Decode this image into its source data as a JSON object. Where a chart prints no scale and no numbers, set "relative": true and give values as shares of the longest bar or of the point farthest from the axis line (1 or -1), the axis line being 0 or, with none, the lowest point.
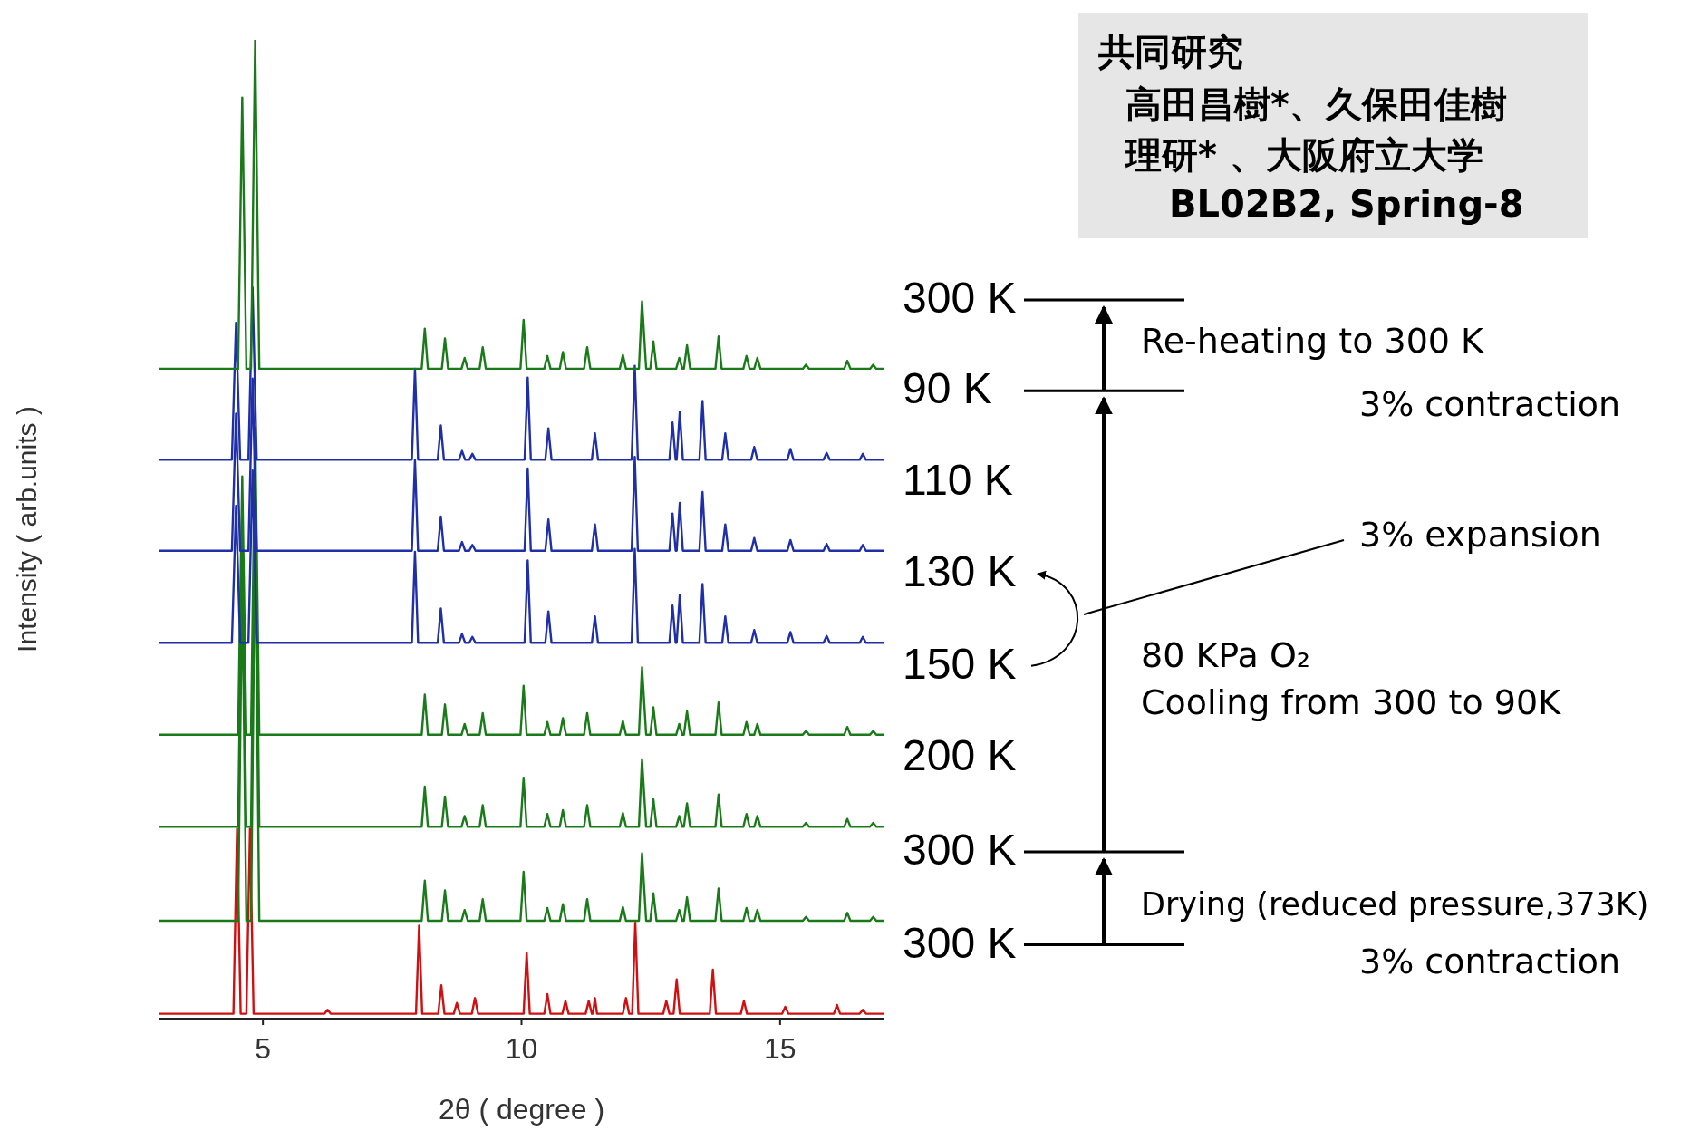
{
  "chart_data": {
    "type": "line",
    "relative": true,
    "xlabel": "2θ ( degree )",
    "ylabel": "Intensity ( arb.units )",
    "xlim": [
      3,
      17
    ],
    "xticks": [
      5,
      10,
      15
    ],
    "marker": "none",
    "line_style": "solid",
    "tick_labels": "x",
    "series": [
      {
        "name": "300 K",
        "color": "#d01010",
        "x": [
          3,
          4.43,
          4.5,
          4.57,
          4.68,
          4.75,
          4.82,
          6.19,
          6.25,
          6.31,
          7.96,
          8.02,
          8.08,
          8.39,
          8.45,
          8.51,
          8.69,
          8.75,
          8.81,
          9.04,
          9.1,
          9.16,
          10.04,
          10.1,
          10.16,
          10.44,
          10.5,
          10.56,
          10.79,
          10.85,
          10.91,
          11.24,
          11.3,
          11.36,
          11.38,
          11.42,
          11.46,
          11.96,
          12.02,
          12.08,
          12.14,
          12.2,
          12.26,
          12.74,
          12.8,
          12.86,
          12.94,
          13.0,
          13.06,
          13.64,
          13.7,
          13.76,
          14.24,
          14.3,
          14.36,
          15.04,
          15.1,
          15.16,
          16.04,
          16.1,
          16.16,
          16.54,
          16.6,
          16.66,
          17
        ],
        "values": [
          0.005,
          0.005,
          0.194,
          0.005,
          0.005,
          0.194,
          0.005,
          0.005,
          0.009,
          0.005,
          0.005,
          0.095,
          0.005,
          0.005,
          0.034,
          0.005,
          0.005,
          0.016,
          0.005,
          0.005,
          0.021,
          0.005,
          0.005,
          0.067,
          0.005,
          0.005,
          0.025,
          0.005,
          0.005,
          0.018,
          0.005,
          0.005,
          0.018,
          0.005,
          0.005,
          0.021,
          0.005,
          0.005,
          0.021,
          0.005,
          0.005,
          0.098,
          0.005,
          0.005,
          0.018,
          0.005,
          0.005,
          0.04,
          0.005,
          0.005,
          0.05,
          0.005,
          0.005,
          0.018,
          0.005,
          0.005,
          0.012,
          0.005,
          0.005,
          0.014,
          0.005,
          0.005,
          0.009,
          0.005,
          0.005
        ]
      },
      {
        "name": "300 K",
        "color": "#1a7a1a",
        "x": [
          3,
          4.52,
          4.6,
          4.68,
          4.77,
          4.85,
          4.93,
          8.07,
          8.13,
          8.19,
          8.46,
          8.52,
          8.58,
          8.84,
          8.9,
          8.96,
          9.19,
          9.25,
          9.31,
          9.98,
          10.04,
          10.1,
          10.44,
          10.5,
          10.56,
          10.74,
          10.8,
          10.86,
          11.21,
          11.27,
          11.33,
          11.9,
          11.96,
          12.02,
          12.27,
          12.33,
          12.41,
          12.49,
          12.55,
          12.61,
          12.99,
          13.05,
          13.11,
          13.14,
          13.2,
          13.26,
          13.75,
          13.81,
          13.87,
          14.29,
          14.35,
          14.41,
          14.5,
          14.56,
          14.62,
          15.44,
          15.5,
          15.56,
          16.24,
          16.3,
          16.36,
          16.74,
          16.8,
          16.86,
          17
        ],
        "values": [
          0.1,
          0.1,
          0.45,
          0.1,
          0.1,
          0.5,
          0.1,
          0.1,
          0.141,
          0.1,
          0.1,
          0.131,
          0.1,
          0.1,
          0.111,
          0.1,
          0.1,
          0.122,
          0.1,
          0.1,
          0.15,
          0.1,
          0.1,
          0.113,
          0.1,
          0.1,
          0.117,
          0.1,
          0.1,
          0.122,
          0.1,
          0.1,
          0.114,
          0.1,
          0.1,
          0.169,
          0.1,
          0.1,
          0.128,
          0.1,
          0.1,
          0.111,
          0.1,
          0.1,
          0.124,
          0.1,
          0.1,
          0.133,
          0.1,
          0.1,
          0.113,
          0.1,
          0.1,
          0.111,
          0.1,
          0.1,
          0.104,
          0.1,
          0.1,
          0.108,
          0.1,
          0.1,
          0.104,
          0.1,
          0.1
        ]
      },
      {
        "name": "200 K",
        "color": "#1a7a1a",
        "x": [
          3,
          4.52,
          4.6,
          4.68,
          4.77,
          4.85,
          4.93,
          8.07,
          8.13,
          8.19,
          8.46,
          8.52,
          8.58,
          8.84,
          8.9,
          8.96,
          9.19,
          9.25,
          9.31,
          9.98,
          10.04,
          10.1,
          10.44,
          10.5,
          10.56,
          10.74,
          10.8,
          10.86,
          11.21,
          11.27,
          11.33,
          11.9,
          11.96,
          12.02,
          12.27,
          12.33,
          12.41,
          12.49,
          12.55,
          12.61,
          12.99,
          13.05,
          13.11,
          13.14,
          13.2,
          13.26,
          13.75,
          13.81,
          13.87,
          14.29,
          14.35,
          14.41,
          14.5,
          14.56,
          14.62,
          15.44,
          15.5,
          15.56,
          16.24,
          16.3,
          16.36,
          16.74,
          16.8,
          16.86,
          17
        ],
        "values": [
          0.196,
          0.196,
          0.5,
          0.196,
          0.196,
          0.56,
          0.196,
          0.196,
          0.237,
          0.196,
          0.196,
          0.227,
          0.196,
          0.196,
          0.207,
          0.196,
          0.196,
          0.218,
          0.196,
          0.196,
          0.246,
          0.196,
          0.196,
          0.209,
          0.196,
          0.196,
          0.213,
          0.196,
          0.196,
          0.218,
          0.196,
          0.196,
          0.21,
          0.196,
          0.196,
          0.265,
          0.196,
          0.196,
          0.224,
          0.196,
          0.196,
          0.207,
          0.196,
          0.196,
          0.22,
          0.196,
          0.196,
          0.229,
          0.196,
          0.196,
          0.209,
          0.196,
          0.196,
          0.207,
          0.196,
          0.196,
          0.2,
          0.196,
          0.196,
          0.204,
          0.196,
          0.196,
          0.2,
          0.196,
          0.196
        ]
      },
      {
        "name": "150 K",
        "color": "#1a7a1a",
        "x": [
          3,
          4.52,
          4.6,
          4.68,
          4.77,
          4.85,
          4.93,
          8.07,
          8.13,
          8.19,
          8.46,
          8.52,
          8.58,
          8.84,
          8.9,
          8.96,
          9.19,
          9.25,
          9.31,
          9.98,
          10.04,
          10.1,
          10.44,
          10.5,
          10.56,
          10.74,
          10.8,
          10.86,
          11.21,
          11.27,
          11.33,
          11.9,
          11.96,
          12.02,
          12.27,
          12.33,
          12.41,
          12.49,
          12.55,
          12.61,
          12.99,
          13.05,
          13.11,
          13.14,
          13.2,
          13.26,
          13.75,
          13.81,
          13.87,
          14.29,
          14.35,
          14.41,
          14.5,
          14.56,
          14.62,
          15.44,
          15.5,
          15.56,
          16.24,
          16.3,
          16.36,
          16.74,
          16.8,
          16.86,
          17
        ],
        "values": [
          0.29,
          0.29,
          0.554,
          0.29,
          0.29,
          0.604,
          0.29,
          0.29,
          0.331,
          0.29,
          0.29,
          0.321,
          0.29,
          0.29,
          0.301,
          0.29,
          0.29,
          0.312,
          0.29,
          0.29,
          0.34,
          0.29,
          0.29,
          0.303,
          0.29,
          0.29,
          0.307,
          0.29,
          0.29,
          0.312,
          0.29,
          0.29,
          0.304,
          0.29,
          0.29,
          0.359,
          0.29,
          0.29,
          0.318,
          0.29,
          0.29,
          0.301,
          0.29,
          0.29,
          0.314,
          0.29,
          0.29,
          0.323,
          0.29,
          0.29,
          0.303,
          0.29,
          0.29,
          0.301,
          0.29,
          0.29,
          0.294,
          0.29,
          0.29,
          0.298,
          0.29,
          0.29,
          0.294,
          0.29,
          0.29
        ]
      },
      {
        "name": "130 K",
        "color": "#1f2fa8",
        "x": [
          3,
          4.4,
          4.48,
          4.56,
          4.72,
          4.8,
          4.88,
          7.88,
          7.94,
          8.0,
          8.38,
          8.44,
          8.5,
          8.79,
          8.85,
          8.91,
          8.99,
          9.05,
          9.11,
          10.06,
          10.12,
          10.18,
          10.46,
          10.52,
          10.58,
          11.36,
          11.42,
          11.48,
          12.13,
          12.19,
          12.25,
          12.86,
          12.92,
          12.98,
          13.0,
          13.06,
          13.12,
          13.44,
          13.5,
          13.56,
          13.88,
          13.94,
          14.0,
          14.44,
          14.5,
          14.56,
          15.14,
          15.2,
          15.26,
          15.84,
          15.9,
          15.96,
          16.54,
          16.6,
          16.66,
          17
        ],
        "values": [
          0.384,
          0.384,
          0.524,
          0.384,
          0.384,
          0.56,
          0.384,
          0.384,
          0.477,
          0.384,
          0.384,
          0.419,
          0.384,
          0.384,
          0.393,
          0.384,
          0.384,
          0.39,
          0.384,
          0.384,
          0.468,
          0.384,
          0.384,
          0.416,
          0.384,
          0.384,
          0.411,
          0.384,
          0.384,
          0.48,
          0.384,
          0.384,
          0.422,
          0.384,
          0.384,
          0.433,
          0.384,
          0.384,
          0.444,
          0.384,
          0.384,
          0.411,
          0.384,
          0.384,
          0.397,
          0.384,
          0.384,
          0.395,
          0.384,
          0.384,
          0.391,
          0.384,
          0.384,
          0.39,
          0.384,
          0.384
        ]
      },
      {
        "name": "110 K",
        "color": "#1f2fa8",
        "x": [
          3,
          4.4,
          4.48,
          4.56,
          4.72,
          4.8,
          4.88,
          7.88,
          7.94,
          8.0,
          8.38,
          8.44,
          8.5,
          8.79,
          8.85,
          8.91,
          8.99,
          9.05,
          9.11,
          10.06,
          10.12,
          10.18,
          10.46,
          10.52,
          10.58,
          11.36,
          11.42,
          11.48,
          12.13,
          12.19,
          12.25,
          12.86,
          12.92,
          12.98,
          13.0,
          13.06,
          13.12,
          13.44,
          13.5,
          13.56,
          13.88,
          13.94,
          14.0,
          14.44,
          14.5,
          14.56,
          15.14,
          15.2,
          15.26,
          15.84,
          15.9,
          15.96,
          16.54,
          16.6,
          16.66,
          17
        ],
        "values": [
          0.478,
          0.478,
          0.618,
          0.478,
          0.478,
          0.654,
          0.478,
          0.478,
          0.571,
          0.478,
          0.478,
          0.513,
          0.478,
          0.478,
          0.487,
          0.478,
          0.478,
          0.484,
          0.478,
          0.478,
          0.562,
          0.478,
          0.478,
          0.51,
          0.478,
          0.478,
          0.505,
          0.478,
          0.478,
          0.574,
          0.478,
          0.478,
          0.516,
          0.478,
          0.478,
          0.527,
          0.478,
          0.478,
          0.538,
          0.478,
          0.478,
          0.505,
          0.478,
          0.478,
          0.491,
          0.478,
          0.478,
          0.489,
          0.478,
          0.478,
          0.485,
          0.478,
          0.478,
          0.484,
          0.478,
          0.478
        ]
      },
      {
        "name": "90 K",
        "color": "#1f2fa8",
        "x": [
          3,
          4.4,
          4.48,
          4.56,
          4.72,
          4.8,
          4.88,
          7.88,
          7.94,
          8.0,
          8.38,
          8.44,
          8.5,
          8.79,
          8.85,
          8.91,
          8.99,
          9.05,
          9.11,
          10.06,
          10.12,
          10.18,
          10.46,
          10.52,
          10.58,
          11.36,
          11.42,
          11.48,
          12.13,
          12.19,
          12.25,
          12.86,
          12.92,
          12.98,
          13.0,
          13.06,
          13.12,
          13.44,
          13.5,
          13.56,
          13.88,
          13.94,
          14.0,
          14.44,
          14.5,
          14.56,
          15.14,
          15.2,
          15.26,
          15.84,
          15.9,
          15.96,
          16.54,
          16.6,
          16.66,
          17
        ],
        "values": [
          0.571,
          0.571,
          0.711,
          0.571,
          0.571,
          0.747,
          0.571,
          0.571,
          0.664,
          0.571,
          0.571,
          0.606,
          0.571,
          0.571,
          0.58,
          0.571,
          0.571,
          0.577,
          0.571,
          0.571,
          0.655,
          0.571,
          0.571,
          0.603,
          0.571,
          0.571,
          0.598,
          0.571,
          0.571,
          0.667,
          0.571,
          0.571,
          0.609,
          0.571,
          0.571,
          0.62,
          0.571,
          0.571,
          0.631,
          0.571,
          0.571,
          0.598,
          0.571,
          0.571,
          0.584,
          0.571,
          0.571,
          0.582,
          0.571,
          0.571,
          0.578,
          0.571,
          0.571,
          0.577,
          0.571,
          0.571
        ]
      },
      {
        "name": "300 K",
        "color": "#1a7a1a",
        "x": [
          3,
          4.52,
          4.6,
          4.68,
          4.77,
          4.85,
          4.93,
          8.07,
          8.13,
          8.19,
          8.46,
          8.52,
          8.58,
          8.84,
          8.9,
          8.96,
          9.19,
          9.25,
          9.31,
          9.98,
          10.04,
          10.1,
          10.44,
          10.5,
          10.56,
          10.74,
          10.8,
          10.86,
          11.21,
          11.27,
          11.33,
          11.9,
          11.96,
          12.02,
          12.27,
          12.33,
          12.41,
          12.49,
          12.55,
          12.61,
          12.99,
          13.05,
          13.11,
          13.14,
          13.2,
          13.26,
          13.75,
          13.81,
          13.87,
          14.29,
          14.35,
          14.41,
          14.5,
          14.56,
          14.62,
          15.44,
          15.5,
          15.56,
          16.24,
          16.3,
          16.36,
          16.74,
          16.8,
          16.86,
          17
        ],
        "values": [
          0.664,
          0.664,
          0.941,
          0.664,
          0.664,
          1,
          0.664,
          0.664,
          0.705,
          0.664,
          0.664,
          0.695,
          0.664,
          0.664,
          0.675,
          0.664,
          0.664,
          0.686,
          0.664,
          0.664,
          0.714,
          0.664,
          0.664,
          0.677,
          0.664,
          0.664,
          0.681,
          0.664,
          0.664,
          0.686,
          0.664,
          0.664,
          0.678,
          0.664,
          0.664,
          0.733,
          0.664,
          0.664,
          0.692,
          0.664,
          0.664,
          0.675,
          0.664,
          0.664,
          0.688,
          0.664,
          0.664,
          0.697,
          0.664,
          0.664,
          0.677,
          0.664,
          0.664,
          0.675,
          0.664,
          0.664,
          0.668,
          0.664,
          0.664,
          0.672,
          0.664,
          0.664,
          0.668,
          0.664,
          0.664
        ]
      }
    ],
    "annotations": [
      "Re-heating to 300 K",
      "3% contraction",
      "3% expansion",
      "80 KPa O₂",
      "Cooling from 300 to 90K",
      "Drying (reduced pressure,373K)",
      "3% contraction",
      "共同研究",
      "高田昌樹*、久保田佳樹",
      "理研* 、大阪府立大学",
      "BL02B2, Spring-8"
    ]
  }
}
